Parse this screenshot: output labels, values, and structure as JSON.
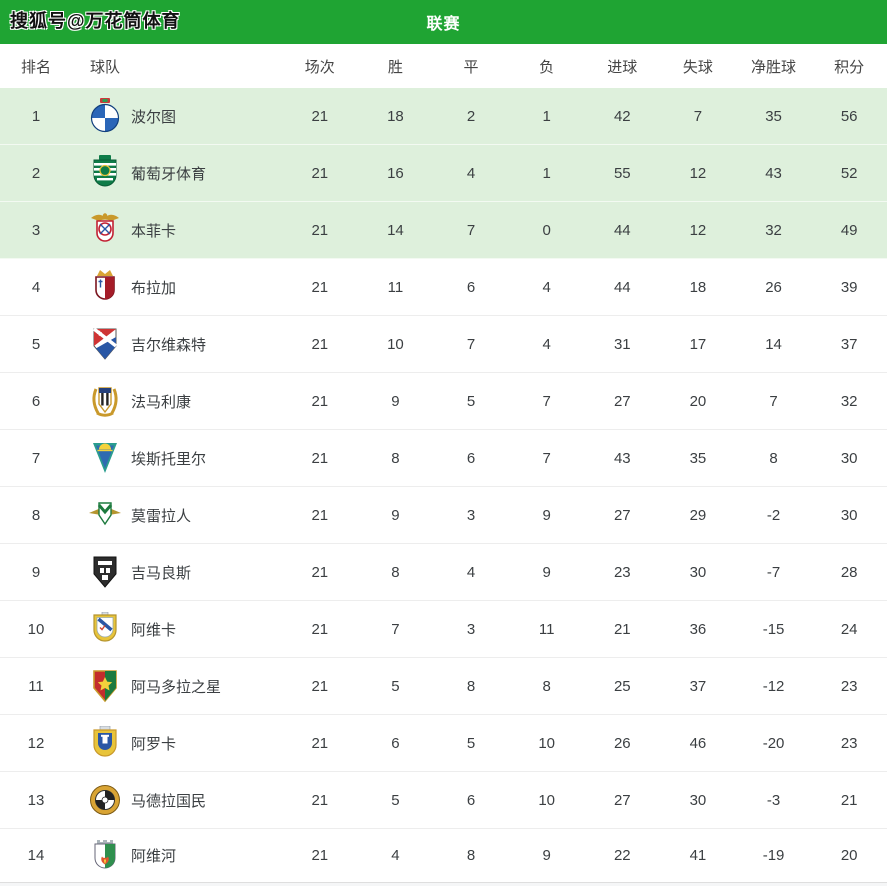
{
  "page": {
    "watermark": "搜狐号@万花筒体育",
    "title": "联赛"
  },
  "colors": {
    "header_green": "#1fa433",
    "highlight_row_green": "#def0dc",
    "row_divider": "#ededed",
    "text": "#3b3f42"
  },
  "chart_data": {
    "type": "table",
    "title": "联赛",
    "columns": [
      "排名",
      "球队",
      "场次",
      "胜",
      "平",
      "负",
      "进球",
      "失球",
      "净胜球",
      "积分"
    ],
    "rows": [
      {
        "rank": "1",
        "team": "波尔图",
        "badge": "porto-crest",
        "highlight": true,
        "stats": [
          21,
          18,
          2,
          1,
          42,
          7,
          35,
          56
        ]
      },
      {
        "rank": "2",
        "team": "葡萄牙体育",
        "badge": "sporting-crest",
        "highlight": true,
        "stats": [
          21,
          16,
          4,
          1,
          55,
          12,
          43,
          52
        ]
      },
      {
        "rank": "3",
        "team": "本菲卡",
        "badge": "benfica-crest",
        "highlight": true,
        "stats": [
          21,
          14,
          7,
          0,
          44,
          12,
          32,
          49
        ]
      },
      {
        "rank": "4",
        "team": "布拉加",
        "badge": "braga-crest",
        "highlight": false,
        "stats": [
          21,
          11,
          6,
          4,
          44,
          18,
          26,
          39
        ]
      },
      {
        "rank": "5",
        "team": "吉尔维森特",
        "badge": "gil-vicente-crest",
        "highlight": false,
        "stats": [
          21,
          10,
          7,
          4,
          31,
          17,
          14,
          37
        ]
      },
      {
        "rank": "6",
        "team": "法马利康",
        "badge": "famalicao-crest",
        "highlight": false,
        "stats": [
          21,
          9,
          5,
          7,
          27,
          20,
          7,
          32
        ]
      },
      {
        "rank": "7",
        "team": "埃斯托里尔",
        "badge": "estoril-crest",
        "highlight": false,
        "stats": [
          21,
          8,
          6,
          7,
          43,
          35,
          8,
          30
        ]
      },
      {
        "rank": "8",
        "team": "莫雷拉人",
        "badge": "moreirense-crest",
        "highlight": false,
        "stats": [
          21,
          9,
          3,
          9,
          27,
          29,
          -2,
          30
        ]
      },
      {
        "rank": "9",
        "team": "吉马良斯",
        "badge": "guimaraes-crest",
        "highlight": false,
        "stats": [
          21,
          8,
          4,
          9,
          23,
          30,
          -7,
          28
        ]
      },
      {
        "rank": "10",
        "team": "阿维卡",
        "badge": "aves-crest",
        "highlight": false,
        "stats": [
          21,
          7,
          3,
          11,
          21,
          36,
          -15,
          24
        ]
      },
      {
        "rank": "11",
        "team": "阿马多拉之星",
        "badge": "estrela-amadora-crest",
        "highlight": false,
        "stats": [
          21,
          5,
          8,
          8,
          25,
          37,
          -12,
          23
        ]
      },
      {
        "rank": "12",
        "team": "阿罗卡",
        "badge": "arouca-crest",
        "highlight": false,
        "stats": [
          21,
          6,
          5,
          10,
          26,
          46,
          -20,
          23
        ]
      },
      {
        "rank": "13",
        "team": "马德拉国民",
        "badge": "nacional-madeira-crest",
        "highlight": false,
        "stats": [
          21,
          5,
          6,
          10,
          27,
          30,
          -3,
          21
        ]
      },
      {
        "rank": "14",
        "team": "阿维河",
        "badge": "rio-ave-crest",
        "highlight": false,
        "stats": [
          21,
          4,
          8,
          9,
          22,
          41,
          -19,
          20
        ]
      }
    ]
  }
}
